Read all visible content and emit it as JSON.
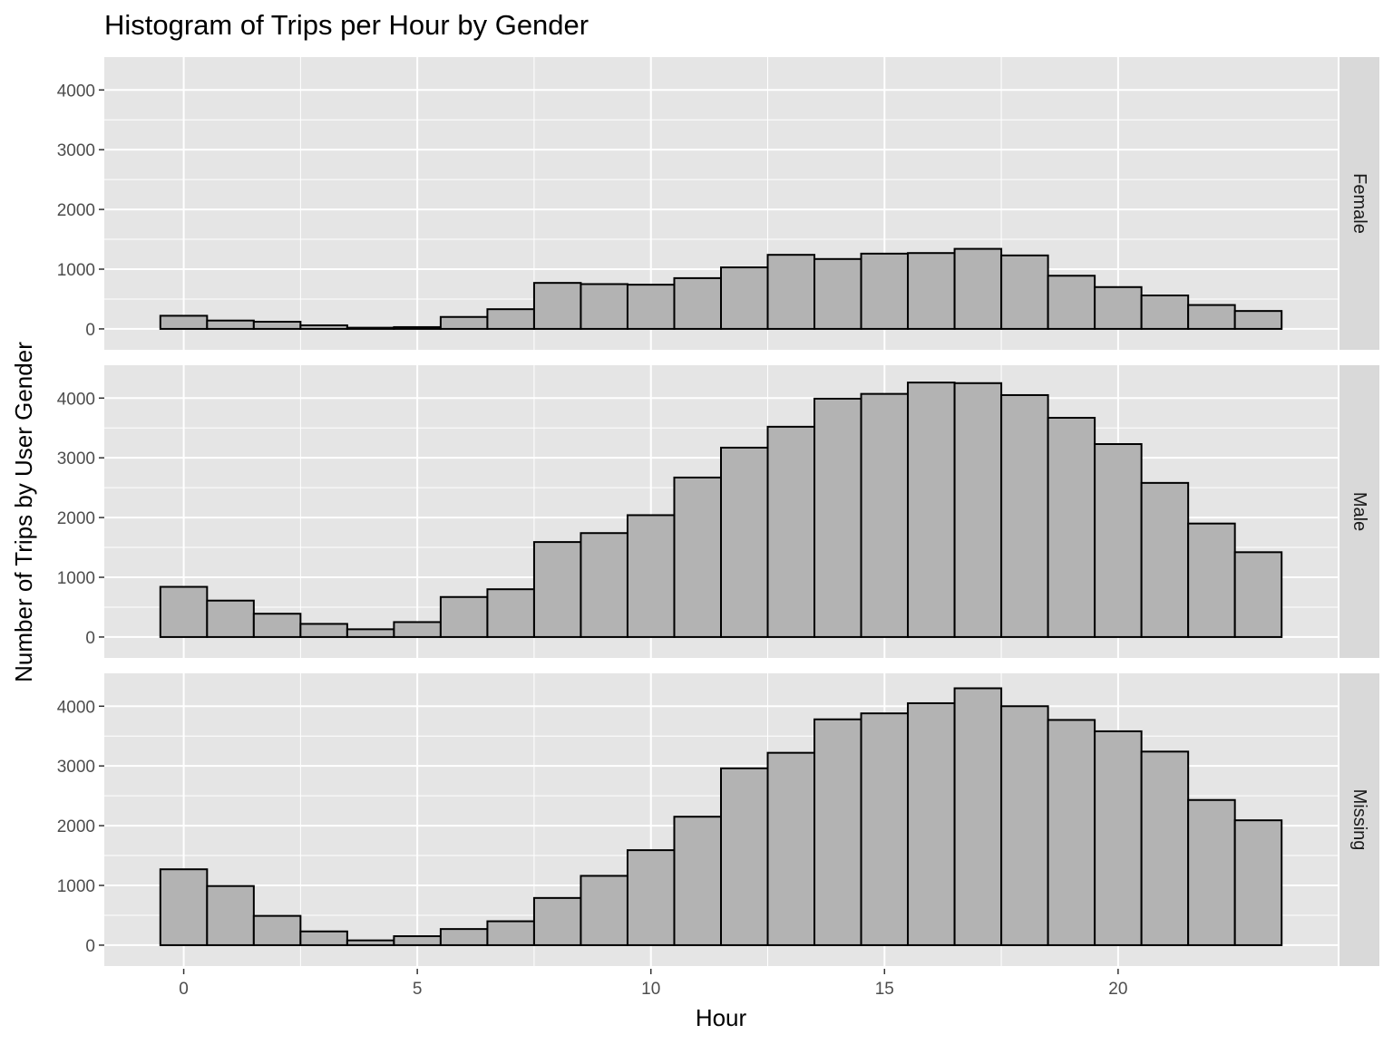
{
  "chart_data": {
    "type": "bar",
    "title": "Histogram of Trips per Hour by Gender",
    "xlabel": "Hour",
    "ylabel": "Number of Trips by User Gender",
    "x": [
      0,
      1,
      2,
      3,
      4,
      5,
      6,
      7,
      8,
      9,
      10,
      11,
      12,
      13,
      14,
      15,
      16,
      17,
      18,
      19,
      20,
      21,
      22,
      23
    ],
    "xlim": [
      -1.7,
      24.7
    ],
    "ylim": [
      -350,
      4550
    ],
    "x_ticks": [
      0,
      5,
      10,
      15,
      20
    ],
    "y_ticks": [
      0,
      1000,
      2000,
      3000,
      4000
    ],
    "grid": true,
    "facet_layout": "rows",
    "colors": {
      "panel_bg": "#e5e5e5",
      "strip_bg": "#d9d9d9",
      "bar_fill": "#b3b3b3",
      "bar_stroke": "#000000",
      "grid": "#ffffff"
    },
    "series": [
      {
        "name": "Female",
        "values": [
          220,
          140,
          120,
          60,
          20,
          30,
          200,
          330,
          770,
          750,
          740,
          850,
          1030,
          1240,
          1170,
          1260,
          1270,
          1340,
          1230,
          890,
          700,
          560,
          400,
          300
        ]
      },
      {
        "name": "Male",
        "values": [
          840,
          610,
          390,
          220,
          130,
          250,
          670,
          800,
          1590,
          1740,
          2040,
          2670,
          3170,
          3520,
          3990,
          4070,
          4260,
          4250,
          4050,
          3670,
          3230,
          2580,
          1900,
          1420
        ]
      },
      {
        "name": "Missing",
        "values": [
          1270,
          990,
          490,
          230,
          80,
          150,
          270,
          400,
          790,
          1160,
          1590,
          2150,
          2960,
          3220,
          3780,
          3880,
          4050,
          4300,
          4000,
          3770,
          3580,
          3240,
          2430,
          2090
        ]
      }
    ]
  }
}
